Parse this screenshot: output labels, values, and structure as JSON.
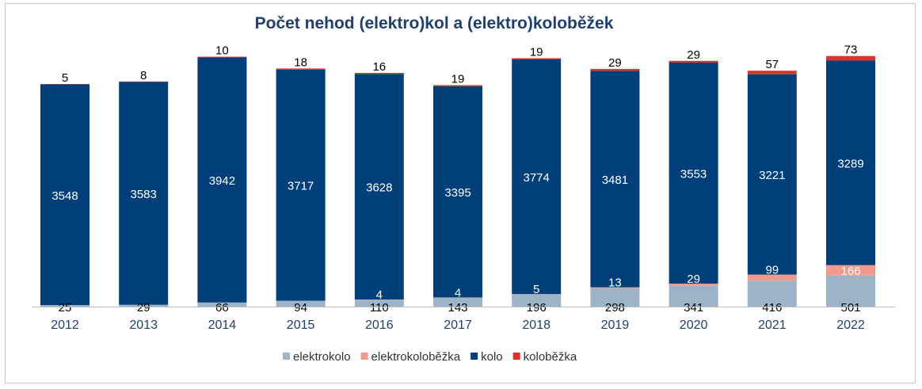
{
  "chart_data": {
    "type": "bar",
    "stacked": true,
    "title": "Počet nehod (elektro)kol a (elektro)koloběžek",
    "categories": [
      "2012",
      "2013",
      "2014",
      "2015",
      "2016",
      "2017",
      "2018",
      "2019",
      "2020",
      "2021",
      "2022"
    ],
    "series": [
      {
        "name": "elektrokolo",
        "color": "#9db3c8",
        "label_color": "#000000",
        "values": [
          25,
          29,
          66,
          94,
          110,
          143,
          196,
          298,
          341,
          416,
          501
        ]
      },
      {
        "name": "elektrokoloběžka",
        "color": "#f0998e",
        "label_color": "#ffffff",
        "values": [
          null,
          null,
          null,
          null,
          4,
          4,
          5,
          13,
          29,
          99,
          166
        ]
      },
      {
        "name": "kolo",
        "color": "#003f7a",
        "label_color": "#ffffff",
        "values": [
          3548,
          3583,
          3942,
          3717,
          3628,
          3395,
          3774,
          3481,
          3553,
          3221,
          3289
        ]
      },
      {
        "name": "koloběžka",
        "color": "#d9332b",
        "label_color": "#000000",
        "values": [
          5,
          8,
          10,
          18,
          16,
          19,
          19,
          29,
          29,
          57,
          73
        ]
      }
    ],
    "legend_position": "bottom",
    "grid": false
  }
}
